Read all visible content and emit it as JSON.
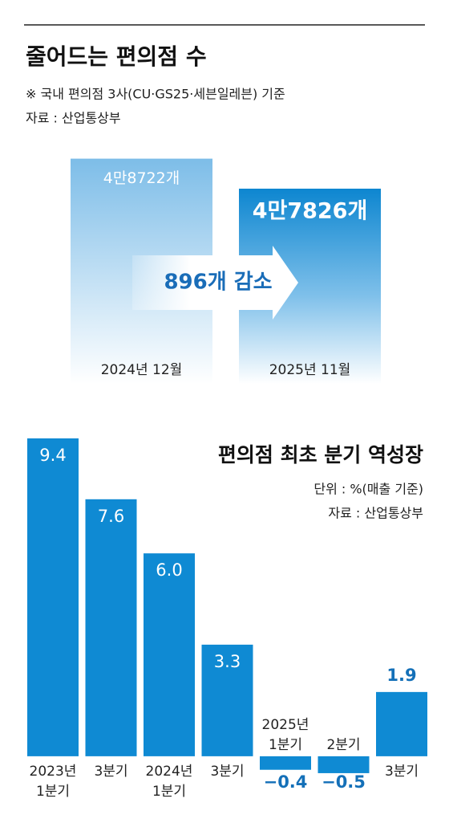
{
  "chart_data": [
    {
      "type": "bar",
      "title": "줄어드는 편의점 수",
      "subtitle": "※ 국내 편의점 3사(CU·GS25·세븐일레븐) 기준",
      "source": "자료 : 산업통상부",
      "categories": [
        "2024년 12월",
        "2025년 11월"
      ],
      "values": [
        48722,
        47826
      ],
      "value_labels": [
        "4만8722개",
        "4만7826개"
      ],
      "colors": [
        "#7dbde8",
        "#0d86d0"
      ],
      "ylim": [
        42000,
        49000
      ],
      "annotation": "896개 감소"
    },
    {
      "type": "bar",
      "title": "편의점 최초 분기 역성장",
      "subtitle": "단위 : %(매출 기준)",
      "source": "자료 : 산업통상부",
      "categories": [
        [
          "2023년",
          "1분기"
        ],
        [
          "3분기"
        ],
        [
          "2024년",
          "1분기"
        ],
        [
          "3분기"
        ],
        [
          "2025년",
          "1분기"
        ],
        [
          "2분기"
        ],
        [
          "3분기"
        ]
      ],
      "values": [
        9.4,
        7.6,
        6.0,
        3.3,
        -0.4,
        -0.5,
        1.9
      ],
      "value_labels": [
        "9.4",
        "7.6",
        "6.0",
        "3.3",
        "−0.4",
        "−0.5",
        "1.9"
      ],
      "color": "#0f8ad3",
      "ylim": [
        -1,
        9.4
      ]
    }
  ]
}
